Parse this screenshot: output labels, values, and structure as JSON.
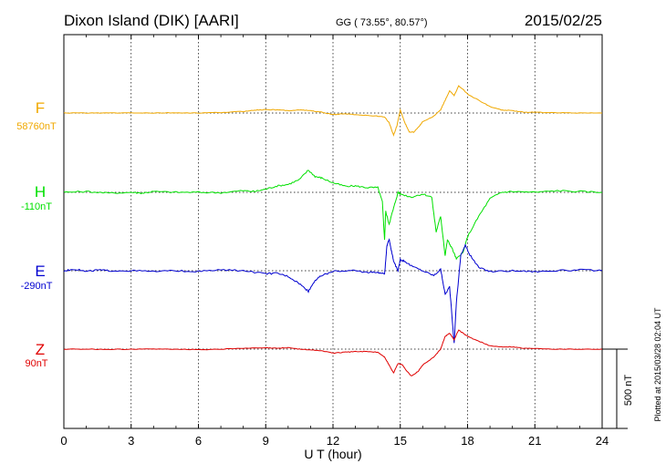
{
  "header": {
    "station": "Dixon Island (DIK)  [AARI]",
    "coords": "GG ( 73.55°,  80.57°)",
    "date": "2015/02/25"
  },
  "side_note": "Plotted at 2015/03/28 02:04 UT",
  "scale_label": "500 nT",
  "colors": {
    "F": "#f0a800",
    "H": "#00e000",
    "E": "#0000d0",
    "Z": "#e00000"
  },
  "chart_data": {
    "type": "line",
    "xlabel": "U T (hour)",
    "xlim": [
      0,
      24
    ],
    "x_ticks": [
      "0",
      "3",
      "6",
      "9",
      "12",
      "15",
      "18",
      "21",
      "24"
    ],
    "scale_bar_nT": 500,
    "series": [
      {
        "name": "F",
        "baseline_label": "58760nT",
        "points": [
          [
            0,
            0
          ],
          [
            1,
            0
          ],
          [
            2,
            0
          ],
          [
            3,
            1
          ],
          [
            4,
            0
          ],
          [
            5,
            1
          ],
          [
            6,
            0
          ],
          [
            7,
            3
          ],
          [
            8,
            10
          ],
          [
            8.5,
            18
          ],
          [
            9,
            22
          ],
          [
            9.5,
            20
          ],
          [
            10,
            15
          ],
          [
            10.5,
            20
          ],
          [
            11,
            15
          ],
          [
            11.5,
            5
          ],
          [
            12,
            -10
          ],
          [
            12.5,
            -5
          ],
          [
            13,
            -10
          ],
          [
            13.5,
            -15
          ],
          [
            14,
            -20
          ],
          [
            14.3,
            -25
          ],
          [
            14.5,
            -60
          ],
          [
            14.7,
            -140
          ],
          [
            14.85,
            -80
          ],
          [
            15,
            20
          ],
          [
            15.2,
            -60
          ],
          [
            15.4,
            -120
          ],
          [
            15.6,
            -120
          ],
          [
            15.8,
            -90
          ],
          [
            16,
            -55
          ],
          [
            16.5,
            -20
          ],
          [
            16.8,
            20
          ],
          [
            17,
            80
          ],
          [
            17.2,
            140
          ],
          [
            17.4,
            110
          ],
          [
            17.6,
            170
          ],
          [
            17.8,
            150
          ],
          [
            18,
            120
          ],
          [
            18.5,
            80
          ],
          [
            19,
            40
          ],
          [
            19.5,
            20
          ],
          [
            20,
            15
          ],
          [
            20.5,
            5
          ],
          [
            21,
            5
          ],
          [
            22,
            2
          ],
          [
            23,
            0
          ],
          [
            24,
            0
          ]
        ]
      },
      {
        "name": "H",
        "baseline_label": "-110nT",
        "points": [
          [
            0,
            0
          ],
          [
            1,
            5
          ],
          [
            2,
            -5
          ],
          [
            3,
            0
          ],
          [
            3.5,
            -5
          ],
          [
            4,
            5
          ],
          [
            5,
            0
          ],
          [
            6,
            0
          ],
          [
            7,
            -2
          ],
          [
            8,
            10
          ],
          [
            8.5,
            5
          ],
          [
            9,
            20
          ],
          [
            9.5,
            40
          ],
          [
            10,
            50
          ],
          [
            10.5,
            80
          ],
          [
            10.9,
            140
          ],
          [
            11.2,
            100
          ],
          [
            11.5,
            90
          ],
          [
            12,
            60
          ],
          [
            12.5,
            40
          ],
          [
            13,
            40
          ],
          [
            13.5,
            30
          ],
          [
            14,
            30
          ],
          [
            14.2,
            -60
          ],
          [
            14.3,
            -300
          ],
          [
            14.35,
            -120
          ],
          [
            14.5,
            -200
          ],
          [
            14.7,
            -100
          ],
          [
            14.9,
            0
          ],
          [
            15,
            -10
          ],
          [
            15.5,
            -30
          ],
          [
            16,
            -10
          ],
          [
            16.4,
            -30
          ],
          [
            16.6,
            -250
          ],
          [
            16.8,
            -150
          ],
          [
            17,
            -400
          ],
          [
            17.1,
            -300
          ],
          [
            17.3,
            -350
          ],
          [
            17.5,
            -420
          ],
          [
            17.8,
            -380
          ],
          [
            18,
            -280
          ],
          [
            18.5,
            -150
          ],
          [
            19,
            -40
          ],
          [
            19.5,
            0
          ],
          [
            20,
            5
          ],
          [
            21,
            0
          ],
          [
            22,
            10
          ],
          [
            23,
            5
          ],
          [
            24,
            0
          ]
        ]
      },
      {
        "name": "E",
        "baseline_label": "-290nT",
        "points": [
          [
            0,
            0
          ],
          [
            0.5,
            10
          ],
          [
            1,
            -5
          ],
          [
            1.5,
            5
          ],
          [
            2,
            0
          ],
          [
            3,
            0
          ],
          [
            4,
            -5
          ],
          [
            5,
            0
          ],
          [
            6,
            -5
          ],
          [
            7,
            5
          ],
          [
            8,
            0
          ],
          [
            9,
            -20
          ],
          [
            9.5,
            -15
          ],
          [
            10,
            -35
          ],
          [
            10.5,
            -80
          ],
          [
            10.9,
            -130
          ],
          [
            11.2,
            -60
          ],
          [
            11.5,
            -30
          ],
          [
            12,
            -5
          ],
          [
            12.5,
            0
          ],
          [
            13,
            0
          ],
          [
            13.5,
            -10
          ],
          [
            14,
            -10
          ],
          [
            14.3,
            -20
          ],
          [
            14.4,
            150
          ],
          [
            14.5,
            200
          ],
          [
            14.6,
            130
          ],
          [
            14.7,
            60
          ],
          [
            14.9,
            0
          ],
          [
            15,
            70
          ],
          [
            15.2,
            60
          ],
          [
            15.5,
            30
          ],
          [
            16,
            0
          ],
          [
            16.5,
            -30
          ],
          [
            16.8,
            10
          ],
          [
            17,
            -150
          ],
          [
            17.2,
            -100
          ],
          [
            17.4,
            -460
          ],
          [
            17.5,
            -200
          ],
          [
            17.7,
            100
          ],
          [
            17.9,
            160
          ],
          [
            18.1,
            100
          ],
          [
            18.5,
            20
          ],
          [
            19,
            -5
          ],
          [
            20,
            0
          ],
          [
            21,
            -5
          ],
          [
            22,
            0
          ],
          [
            23,
            5
          ],
          [
            24,
            0
          ]
        ]
      },
      {
        "name": "Z",
        "baseline_label": "90nT",
        "points": [
          [
            0,
            0
          ],
          [
            1,
            0
          ],
          [
            2,
            -2
          ],
          [
            3,
            0
          ],
          [
            4,
            0
          ],
          [
            5,
            0
          ],
          [
            6,
            -3
          ],
          [
            7,
            0
          ],
          [
            8,
            5
          ],
          [
            9,
            8
          ],
          [
            9.5,
            5
          ],
          [
            10,
            10
          ],
          [
            10.5,
            0
          ],
          [
            11,
            -5
          ],
          [
            11.5,
            -10
          ],
          [
            12,
            -25
          ],
          [
            12.5,
            -20
          ],
          [
            13,
            -15
          ],
          [
            13.5,
            -15
          ],
          [
            14,
            -20
          ],
          [
            14.3,
            -50
          ],
          [
            14.5,
            -100
          ],
          [
            14.7,
            -150
          ],
          [
            14.9,
            -90
          ],
          [
            15.1,
            -100
          ],
          [
            15.3,
            -140
          ],
          [
            15.5,
            -170
          ],
          [
            15.8,
            -140
          ],
          [
            16,
            -100
          ],
          [
            16.5,
            -50
          ],
          [
            16.8,
            0
          ],
          [
            17,
            80
          ],
          [
            17.2,
            100
          ],
          [
            17.4,
            60
          ],
          [
            17.6,
            120
          ],
          [
            17.8,
            100
          ],
          [
            18,
            80
          ],
          [
            18.5,
            50
          ],
          [
            19,
            20
          ],
          [
            19.5,
            15
          ],
          [
            20,
            15
          ],
          [
            20.5,
            5
          ],
          [
            21,
            5
          ],
          [
            22,
            0
          ],
          [
            23,
            0
          ],
          [
            24,
            0
          ]
        ]
      }
    ]
  }
}
